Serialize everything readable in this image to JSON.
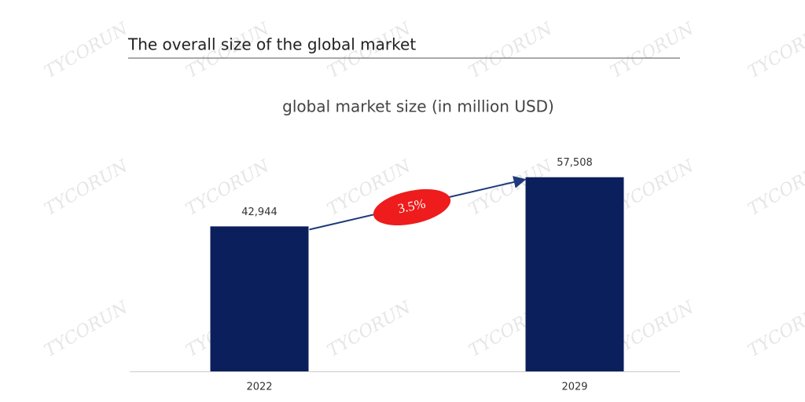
{
  "watermark": "TYCORUN",
  "heading": "The overall size of the global market",
  "chart_data": {
    "type": "bar",
    "title": "global market size (in million USD)",
    "categories": [
      "2022",
      "2029"
    ],
    "values": [
      42944,
      57508
    ],
    "value_labels": [
      "42,944",
      "57,508"
    ],
    "color": "#0b1f5c",
    "ylim": [
      0,
      70000
    ],
    "annotation": "3.5%",
    "annotation_color": "#ee1c1c"
  }
}
